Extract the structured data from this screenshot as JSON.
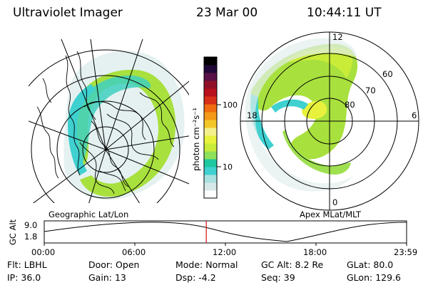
{
  "header": {
    "instrument": "Ultraviolet Imager",
    "date": "23 Mar 00",
    "time": "10:44:11 UT"
  },
  "geographic_panel": {
    "caption": "Geographic Lat/Lon"
  },
  "apex_panel": {
    "caption": "Apex MLat/MLT",
    "mlt_labels": {
      "top": "12",
      "left": "18",
      "right": "6",
      "bottom": "0"
    },
    "lat_labels": [
      "60",
      "70",
      "80"
    ]
  },
  "colorbar": {
    "unit_label": "photon cm⁻²s⁻¹",
    "tick_labels": [
      "100",
      "10"
    ],
    "colors": [
      "#ffffff",
      "#d8e8e8",
      "#a9e0e0",
      "#3fd0d0",
      "#1fc8a0",
      "#8fe05a",
      "#c8ec38",
      "#e8f23c",
      "#f4f08c",
      "#f2c628",
      "#f39a18",
      "#ef6c10",
      "#d83018",
      "#b8101c",
      "#901028",
      "#5a1048",
      "#200838",
      "#000000"
    ]
  },
  "timeline": {
    "axis_label": "GC Alt",
    "y_labels": [
      "9.0",
      "1.8"
    ],
    "time_labels": [
      "00:00",
      "06:00",
      "12:00",
      "18:00",
      "23:59"
    ],
    "marker_color": "#d01010",
    "marker_fraction": 0.4473
  },
  "footer": {
    "row1": [
      {
        "label": "Flt:",
        "value": "LBHL"
      },
      {
        "label": "Door:",
        "value": "Open"
      },
      {
        "label": "Mode:",
        "value": "Normal"
      },
      {
        "label": "GC Alt:",
        "value": "8.2 Re"
      },
      {
        "label": "GLat:",
        "value": "80.0"
      }
    ],
    "row2": [
      {
        "label": "IP:",
        "value": "36.0"
      },
      {
        "label": "Gain:",
        "value": "13"
      },
      {
        "label": "Dsp:",
        "value": "-4.2"
      },
      {
        "label": "Seq:",
        "value": "39"
      },
      {
        "label": "GLon:",
        "value": "129.6"
      }
    ]
  }
}
